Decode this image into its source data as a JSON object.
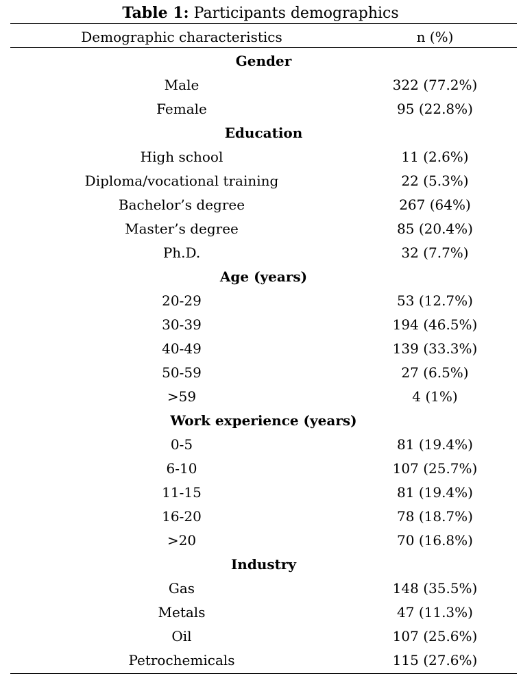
{
  "caption": {
    "label": "Table 1:",
    "text": "Participants demographics"
  },
  "table": {
    "headers": [
      "Demographic characteristics",
      "n (%)"
    ],
    "sections": [
      {
        "title": "Gender",
        "rows": [
          {
            "label": "Male",
            "value": "322 (77.2%)"
          },
          {
            "label": "Female",
            "value": "95 (22.8%)"
          }
        ]
      },
      {
        "title": "Education",
        "rows": [
          {
            "label": "High school",
            "value": "11 (2.6%)"
          },
          {
            "label": "Diploma/vocational training",
            "value": "22 (5.3%)"
          },
          {
            "label": "Bachelor’s degree",
            "value": "267 (64%)"
          },
          {
            "label": "Master’s degree",
            "value": "85 (20.4%)"
          },
          {
            "label": "Ph.D.",
            "value": "32 (7.7%)"
          }
        ]
      },
      {
        "title": "Age (years)",
        "rows": [
          {
            "label": "20-29",
            "value": "53 (12.7%)"
          },
          {
            "label": "30-39",
            "value": "194 (46.5%)"
          },
          {
            "label": "40-49",
            "value": "139 (33.3%)"
          },
          {
            "label": "50-59",
            "value": "27 (6.5%)"
          },
          {
            "label": ">59",
            "value": "4 (1%)"
          }
        ]
      },
      {
        "title": "Work experience (years)",
        "rows": [
          {
            "label": "0-5",
            "value": "81 (19.4%)"
          },
          {
            "label": "6-10",
            "value": "107 (25.7%)"
          },
          {
            "label": "11-15",
            "value": "81 (19.4%)"
          },
          {
            "label": "16-20",
            "value": "78 (18.7%)"
          },
          {
            "label": ">20",
            "value": "70 (16.8%)"
          }
        ]
      },
      {
        "title": "Industry",
        "rows": [
          {
            "label": "Gas",
            "value": "148 (35.5%)"
          },
          {
            "label": "Metals",
            "value": "47 (11.3%)"
          },
          {
            "label": "Oil",
            "value": "107 (25.6%)"
          },
          {
            "label": "Petrochemicals",
            "value": "115 (27.6%)"
          }
        ]
      }
    ]
  }
}
